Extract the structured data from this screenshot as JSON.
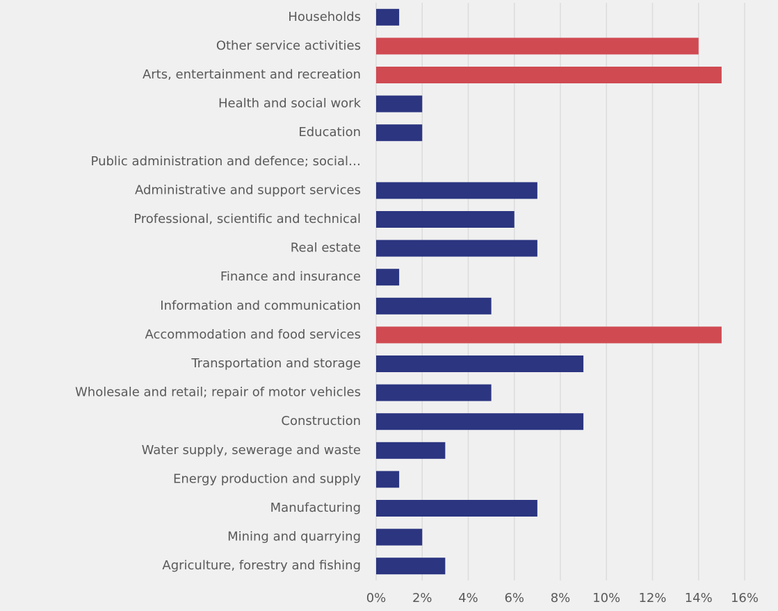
{
  "chart_data": {
    "type": "barh",
    "categories": [
      "Agriculture, forestry and fishing",
      "Mining and quarrying",
      "Manufacturing",
      "Energy production and supply",
      "Water supply, sewerage and waste",
      "Construction",
      "Wholesale and retail; repair of motor vehicles",
      "Transportation and storage",
      "Accommodation and food services",
      "Information and communication",
      "Finance and insurance",
      "Real estate",
      "Professional, scientific and technical",
      "Administrative and support services",
      "Public administration and defence; social…",
      "Education",
      "Health and social work",
      "Arts, entertainment and recreation",
      "Other service activities",
      "Households"
    ],
    "values": [
      3,
      2,
      7,
      1,
      3,
      9,
      5,
      9,
      15,
      5,
      1,
      7,
      6,
      7,
      0,
      2,
      2,
      15,
      14,
      1
    ],
    "colors": [
      "#2b3580",
      "#2b3580",
      "#2b3580",
      "#2b3580",
      "#2b3580",
      "#2b3580",
      "#2b3580",
      "#2b3580",
      "#d04a52",
      "#2b3580",
      "#2b3580",
      "#2b3580",
      "#2b3580",
      "#2b3580",
      "#2b3580",
      "#2b3580",
      "#2b3580",
      "#d04a52",
      "#d04a52",
      "#2b3580"
    ],
    "xlim": [
      0,
      16
    ],
    "xticks": [
      {
        "value": 0,
        "label": "0%"
      },
      {
        "value": 2,
        "label": "2%"
      },
      {
        "value": 4,
        "label": "4%"
      },
      {
        "value": 6,
        "label": "6%"
      },
      {
        "value": 8,
        "label": "8%"
      },
      {
        "value": 10,
        "label": "10%"
      },
      {
        "value": 12,
        "label": "12%"
      },
      {
        "value": 14,
        "label": "14%"
      },
      {
        "value": 16,
        "label": "16%"
      }
    ],
    "grid": true
  }
}
